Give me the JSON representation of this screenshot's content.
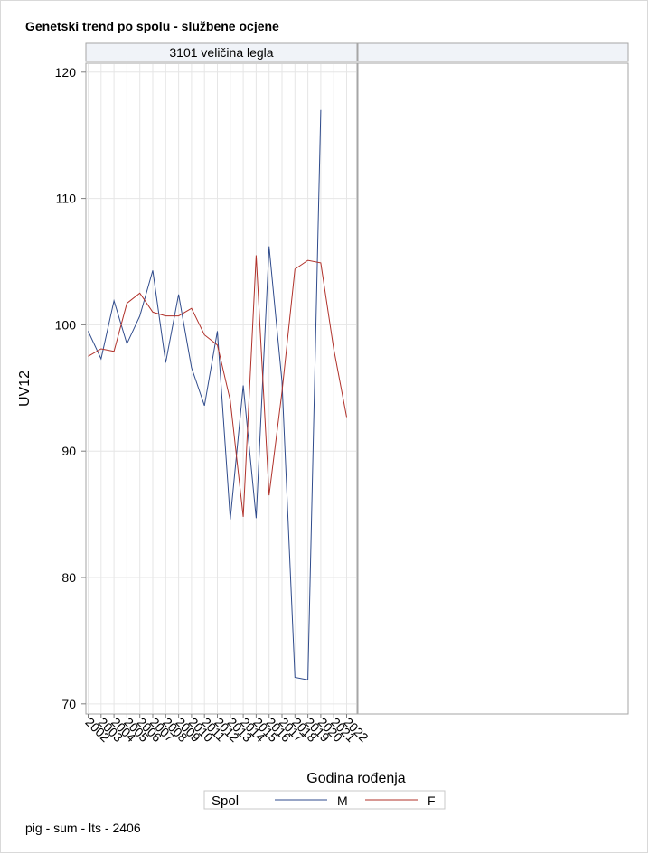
{
  "page_title": "Genetski trend po spolu - službene ocjene",
  "footer_note": "pig - sum - lts - 2406",
  "colors": {
    "M": "#2f4b8c",
    "F": "#b0312a",
    "grid": "#e6e6e6",
    "panel_border": "#a6a6a6",
    "header_fill": "#f0f3f8"
  },
  "chart_data": {
    "type": "line",
    "title": "Genetski trend po spolu - službene ocjene",
    "panel_label": "3101 veličina legla",
    "xlabel": "Godina rođenja",
    "ylabel": "UV12",
    "ylim": [
      69.2,
      120.7
    ],
    "yticks": [
      70,
      80,
      90,
      100,
      110,
      120
    ],
    "x": [
      "2002",
      "2003",
      "2004",
      "2005",
      "2006",
      "2007",
      "2008",
      "2009",
      "2010",
      "2011",
      "2012",
      "2013",
      "2014",
      "2015",
      "2016",
      "2017",
      "2018",
      "2019",
      "2020",
      "2021",
      "2022"
    ],
    "grid": true,
    "legend_title": "Spol",
    "legend_position": "bottom",
    "series": [
      {
        "name": "M",
        "values": [
          99.5,
          97.3,
          101.9,
          98.5,
          100.7,
          104.3,
          97.0,
          102.4,
          96.6,
          93.6,
          99.5,
          84.6,
          95.2,
          84.7,
          106.2,
          95.5,
          72.1,
          71.9,
          117.0,
          null,
          null
        ]
      },
      {
        "name": "F",
        "values": [
          97.5,
          98.1,
          97.9,
          101.7,
          102.5,
          101.0,
          100.7,
          100.7,
          101.3,
          99.2,
          98.4,
          94.0,
          84.8,
          105.5,
          86.5,
          94.7,
          104.4,
          105.1,
          104.9,
          98.1,
          92.7
        ]
      }
    ]
  }
}
